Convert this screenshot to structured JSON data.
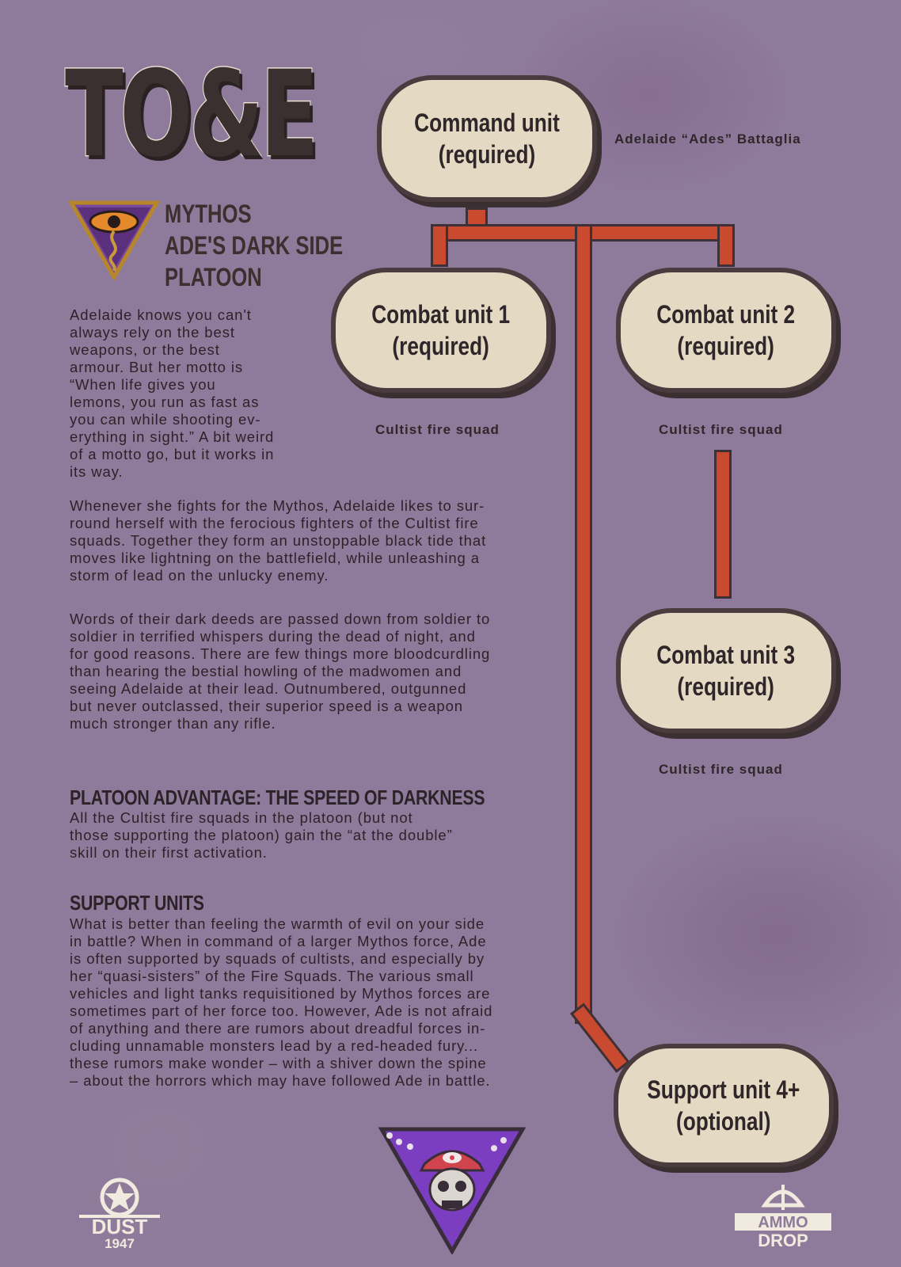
{
  "title": "TO&E",
  "faction": {
    "lines": [
      "MYTHOS",
      "ADE'S DARK SIDE",
      "PLATOON"
    ]
  },
  "intro": "Adelaide knows you can't\nalways rely on the best\nweapons, or the best\narmour. But her motto is\n“When life gives you\nlemons, you run as fast as\nyou can while shooting ev-\nerything in sight.” A bit weird\nof a motto go, but it works in\nits way.",
  "para2": "Whenever she fights for the Mythos, Adelaide likes to sur-\nround herself with the ferocious fighters of the Cultist fire\nsquads. Together they form an unstoppable black tide that\nmoves like lightning on the battlefield, while unleashing a\nstorm of lead on the unlucky enemy.",
  "para3": "Words of their dark deeds are passed down from soldier to\nsoldier in terrified whispers during the dead of night, and\nfor good reasons. There are few things more bloodcurdling\nthan hearing the bestial howling of the madwomen and\nseeing Adelaide at their lead. Outnumbered, outgunned\nbut never outclassed, their superior speed is a weapon\nmuch stronger than any rifle.",
  "advantage": {
    "heading": "PLATOON ADVANTAGE: THE SPEED OF DARKNESS",
    "text": "All the Cultist fire squads in the platoon (but not\nthose supporting the platoon) gain the “at the double”\nskill on their first activation."
  },
  "support": {
    "heading": "SUPPORT UNITS",
    "text": "What is better than feeling the warmth of evil on your side\nin battle? When in command of a larger Mythos force, Ade\nis often supported by squads of cultists, and especially by\nher “quasi-sisters” of the Fire Squads. The various small\nvehicles and light tanks requisitioned by Mythos forces are\nsometimes part of her force too. However, Ade is not afraid\nof anything and there are rumors about dreadful forces in-\ncluding unnamable monsters lead by a red-headed fury...\nthese rumors make wonder – with a shiver down the spine\n– about the horrors which may have followed Ade in battle."
  },
  "units": {
    "command": {
      "label": "Command unit\n(required)",
      "caption": "Adelaide “Ades” Battaglia"
    },
    "combat1": {
      "label": "Combat unit 1\n(required)",
      "caption": "Cultist fire squad"
    },
    "combat2": {
      "label": "Combat unit 2\n(required)",
      "caption": "Cultist fire squad"
    },
    "combat3": {
      "label": "Combat unit 3\n(required)",
      "caption": "Cultist fire squad"
    },
    "support4": {
      "label": "Support unit 4+\n(optional)"
    }
  },
  "logos": {
    "left": {
      "icon": "dust-1947-logo",
      "text_top": "DUST",
      "text_bottom": "1947"
    },
    "center": {
      "icon": "skull-helmet-emblem"
    },
    "right": {
      "icon": "ammo-drop-logo",
      "text_top": "AMMO",
      "text_bottom": "DROP"
    }
  },
  "colors": {
    "background": "#8e7a9a",
    "line": "#c94a2e",
    "unit_fill": "#e4dac4",
    "dark": "#3a302f"
  }
}
